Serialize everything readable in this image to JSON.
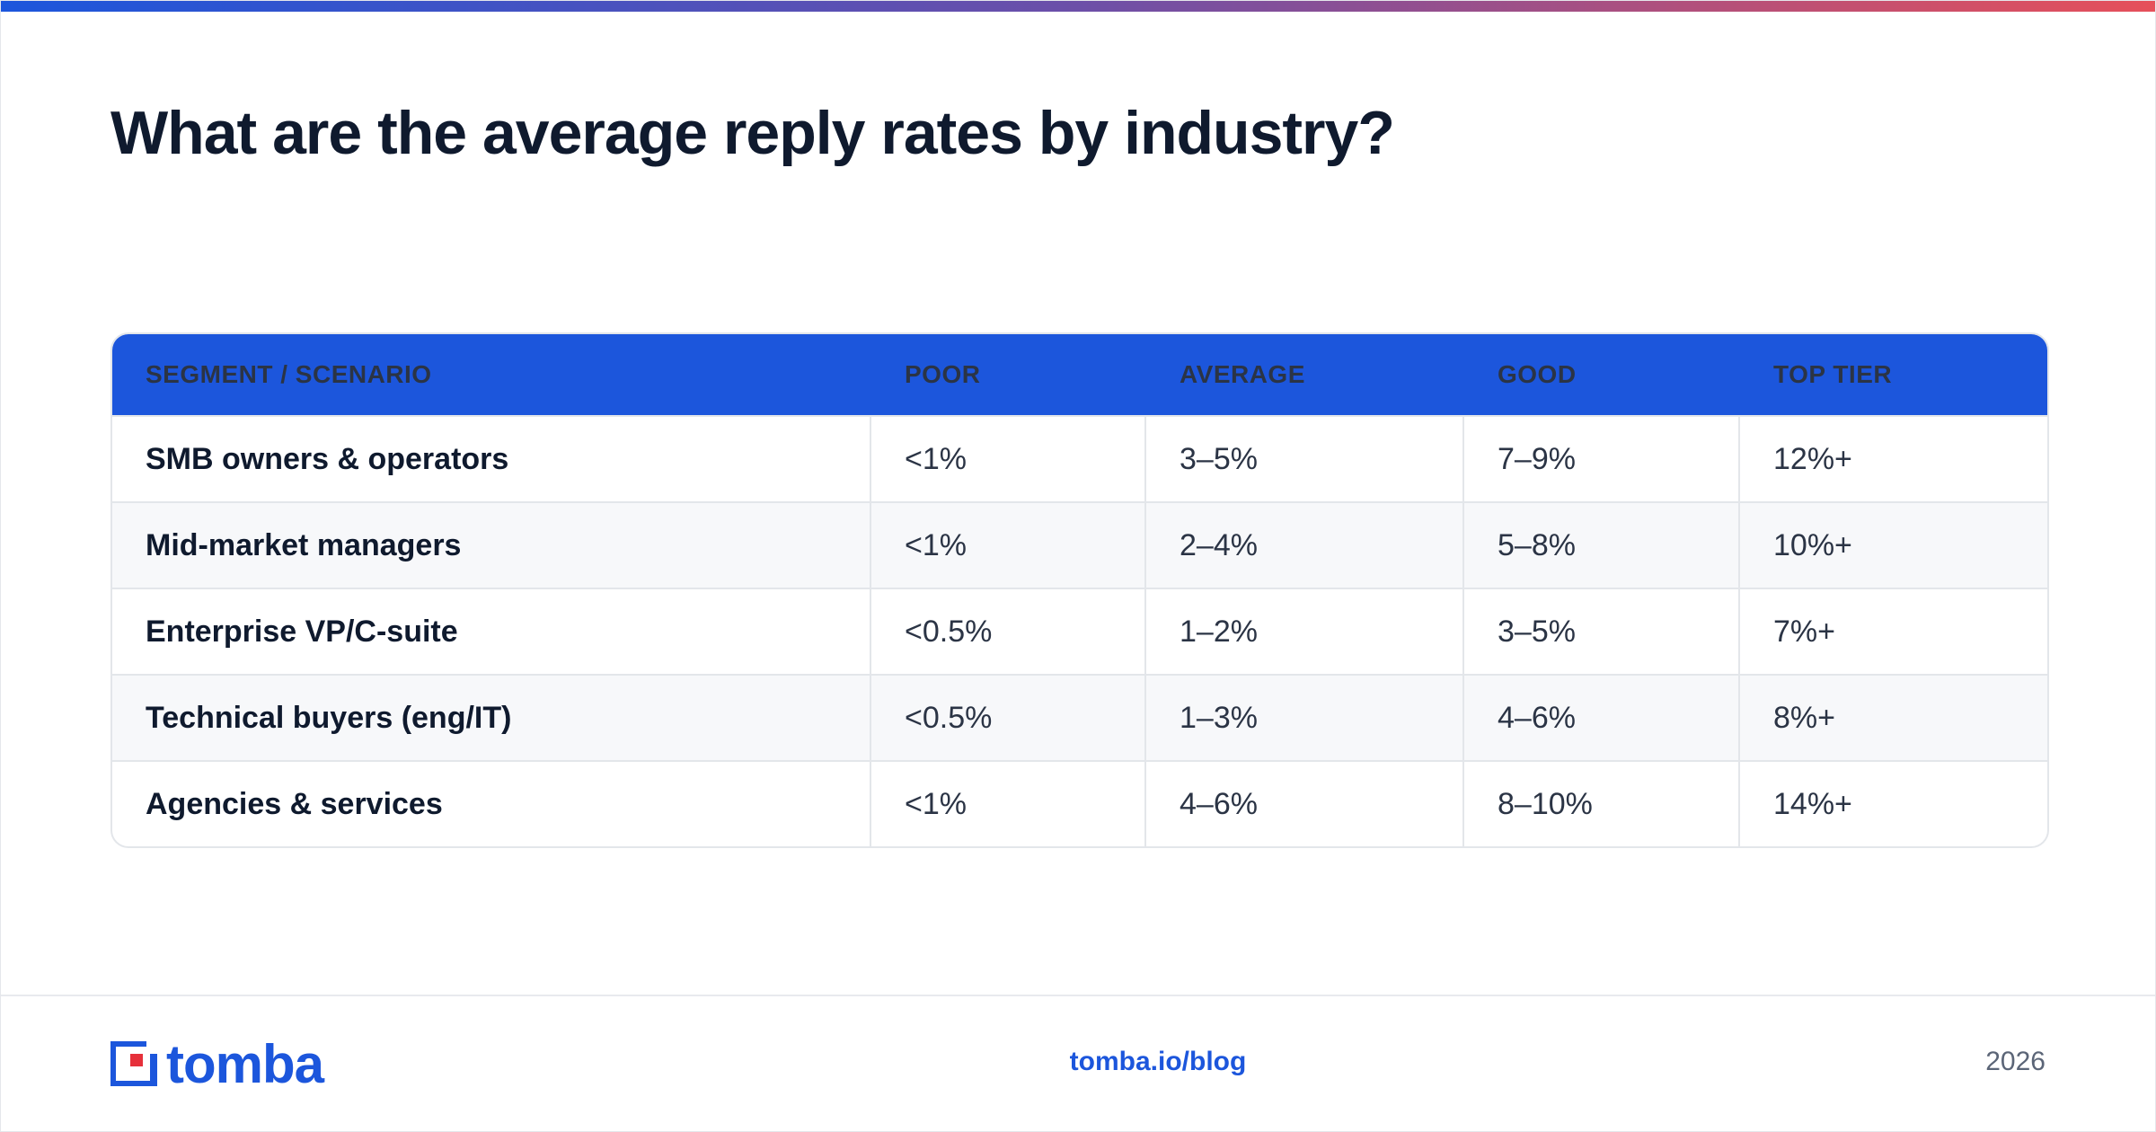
{
  "header": {
    "title": "What are the average reply rates by industry?"
  },
  "table": {
    "columns": [
      "SEGMENT / SCENARIO",
      "POOR",
      "AVERAGE",
      "GOOD",
      "TOP TIER"
    ],
    "rows": [
      [
        "SMB owners & operators",
        "<1%",
        "3–5%",
        "7–9%",
        "12%+"
      ],
      [
        "Mid-market managers",
        "<1%",
        "2–4%",
        "5–8%",
        "10%+"
      ],
      [
        "Enterprise VP/C-suite",
        "<0.5%",
        "1–2%",
        "3–5%",
        "7%+"
      ],
      [
        "Technical buyers (eng/IT)",
        "<0.5%",
        "1–3%",
        "4–6%",
        "8%+"
      ],
      [
        "Agencies & services",
        "<1%",
        "4–6%",
        "8–10%",
        "14%+"
      ]
    ]
  },
  "footer": {
    "logo": "tomba",
    "link": "tomba.io/blog",
    "year": "2026"
  }
}
